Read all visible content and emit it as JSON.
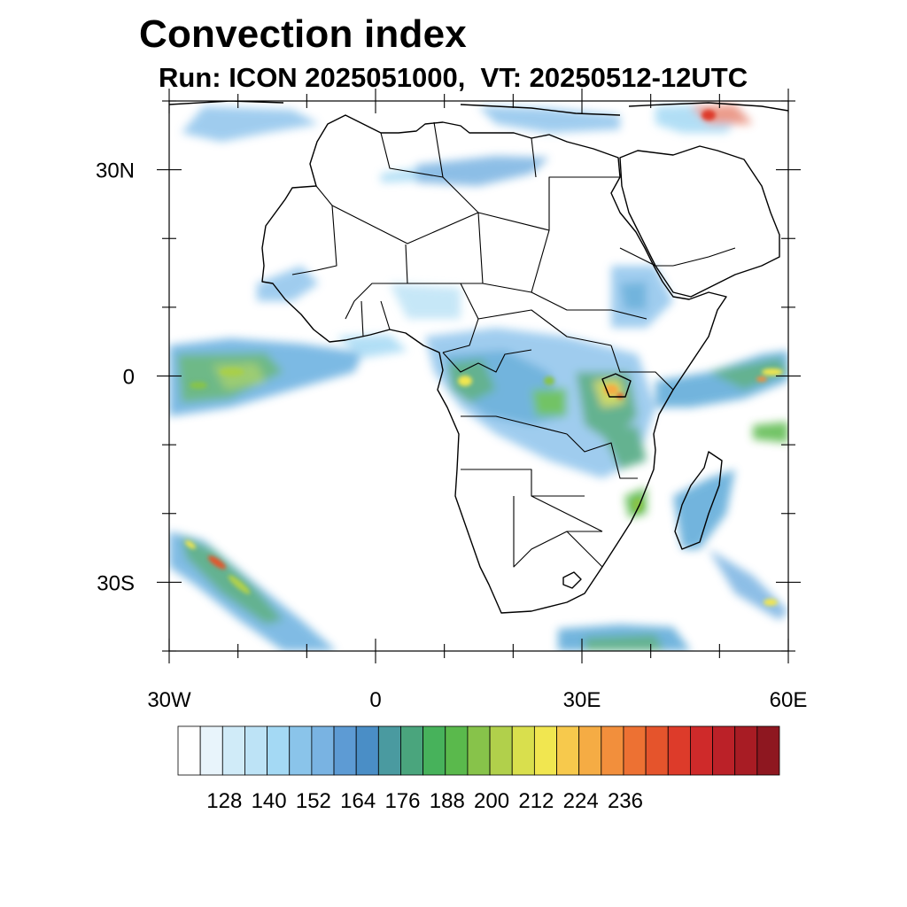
{
  "title": "Convection index",
  "subtitle": "Run: ICON 2025051000,  VT: 20250512-12UTC",
  "map": {
    "region": "Africa",
    "lon_range": [
      -30,
      60
    ],
    "lat_range": [
      -40,
      40
    ],
    "lat_ticks": [
      {
        "value": 30,
        "label": "30N"
      },
      {
        "value": 0,
        "label": "0"
      },
      {
        "value": -30,
        "label": "30S"
      }
    ],
    "lon_ticks": [
      {
        "value": -30,
        "label": "30W"
      },
      {
        "value": 0,
        "label": "0"
      },
      {
        "value": 30,
        "label": "30E"
      },
      {
        "value": 60,
        "label": "60E"
      }
    ]
  },
  "colorbar": {
    "labels": [
      "128",
      "140",
      "152",
      "164",
      "176",
      "188",
      "200",
      "212",
      "224",
      "236"
    ],
    "colors": [
      "#ffffff",
      "#e8f4fb",
      "#d0ebf8",
      "#bde3f6",
      "#a4d9f4",
      "#8ac4ea",
      "#79b3e2",
      "#5d9bd4",
      "#4a8ec6",
      "#4a9aa0",
      "#4aa57d",
      "#47b25b",
      "#5ab94c",
      "#87c34a",
      "#b1d04b",
      "#d9df4d",
      "#f1e650",
      "#f7c94c",
      "#f5ac44",
      "#f28f3c",
      "#ed7133",
      "#e5542c",
      "#dd3b2a",
      "#cf2a2a",
      "#bb2128",
      "#a81c24",
      "#8e1720"
    ]
  },
  "colors": {
    "blue": "#7fb8e6",
    "green": "#4fb35e",
    "yellow": "#eee04f",
    "red": "#d32a2a",
    "coast": "#000000"
  }
}
